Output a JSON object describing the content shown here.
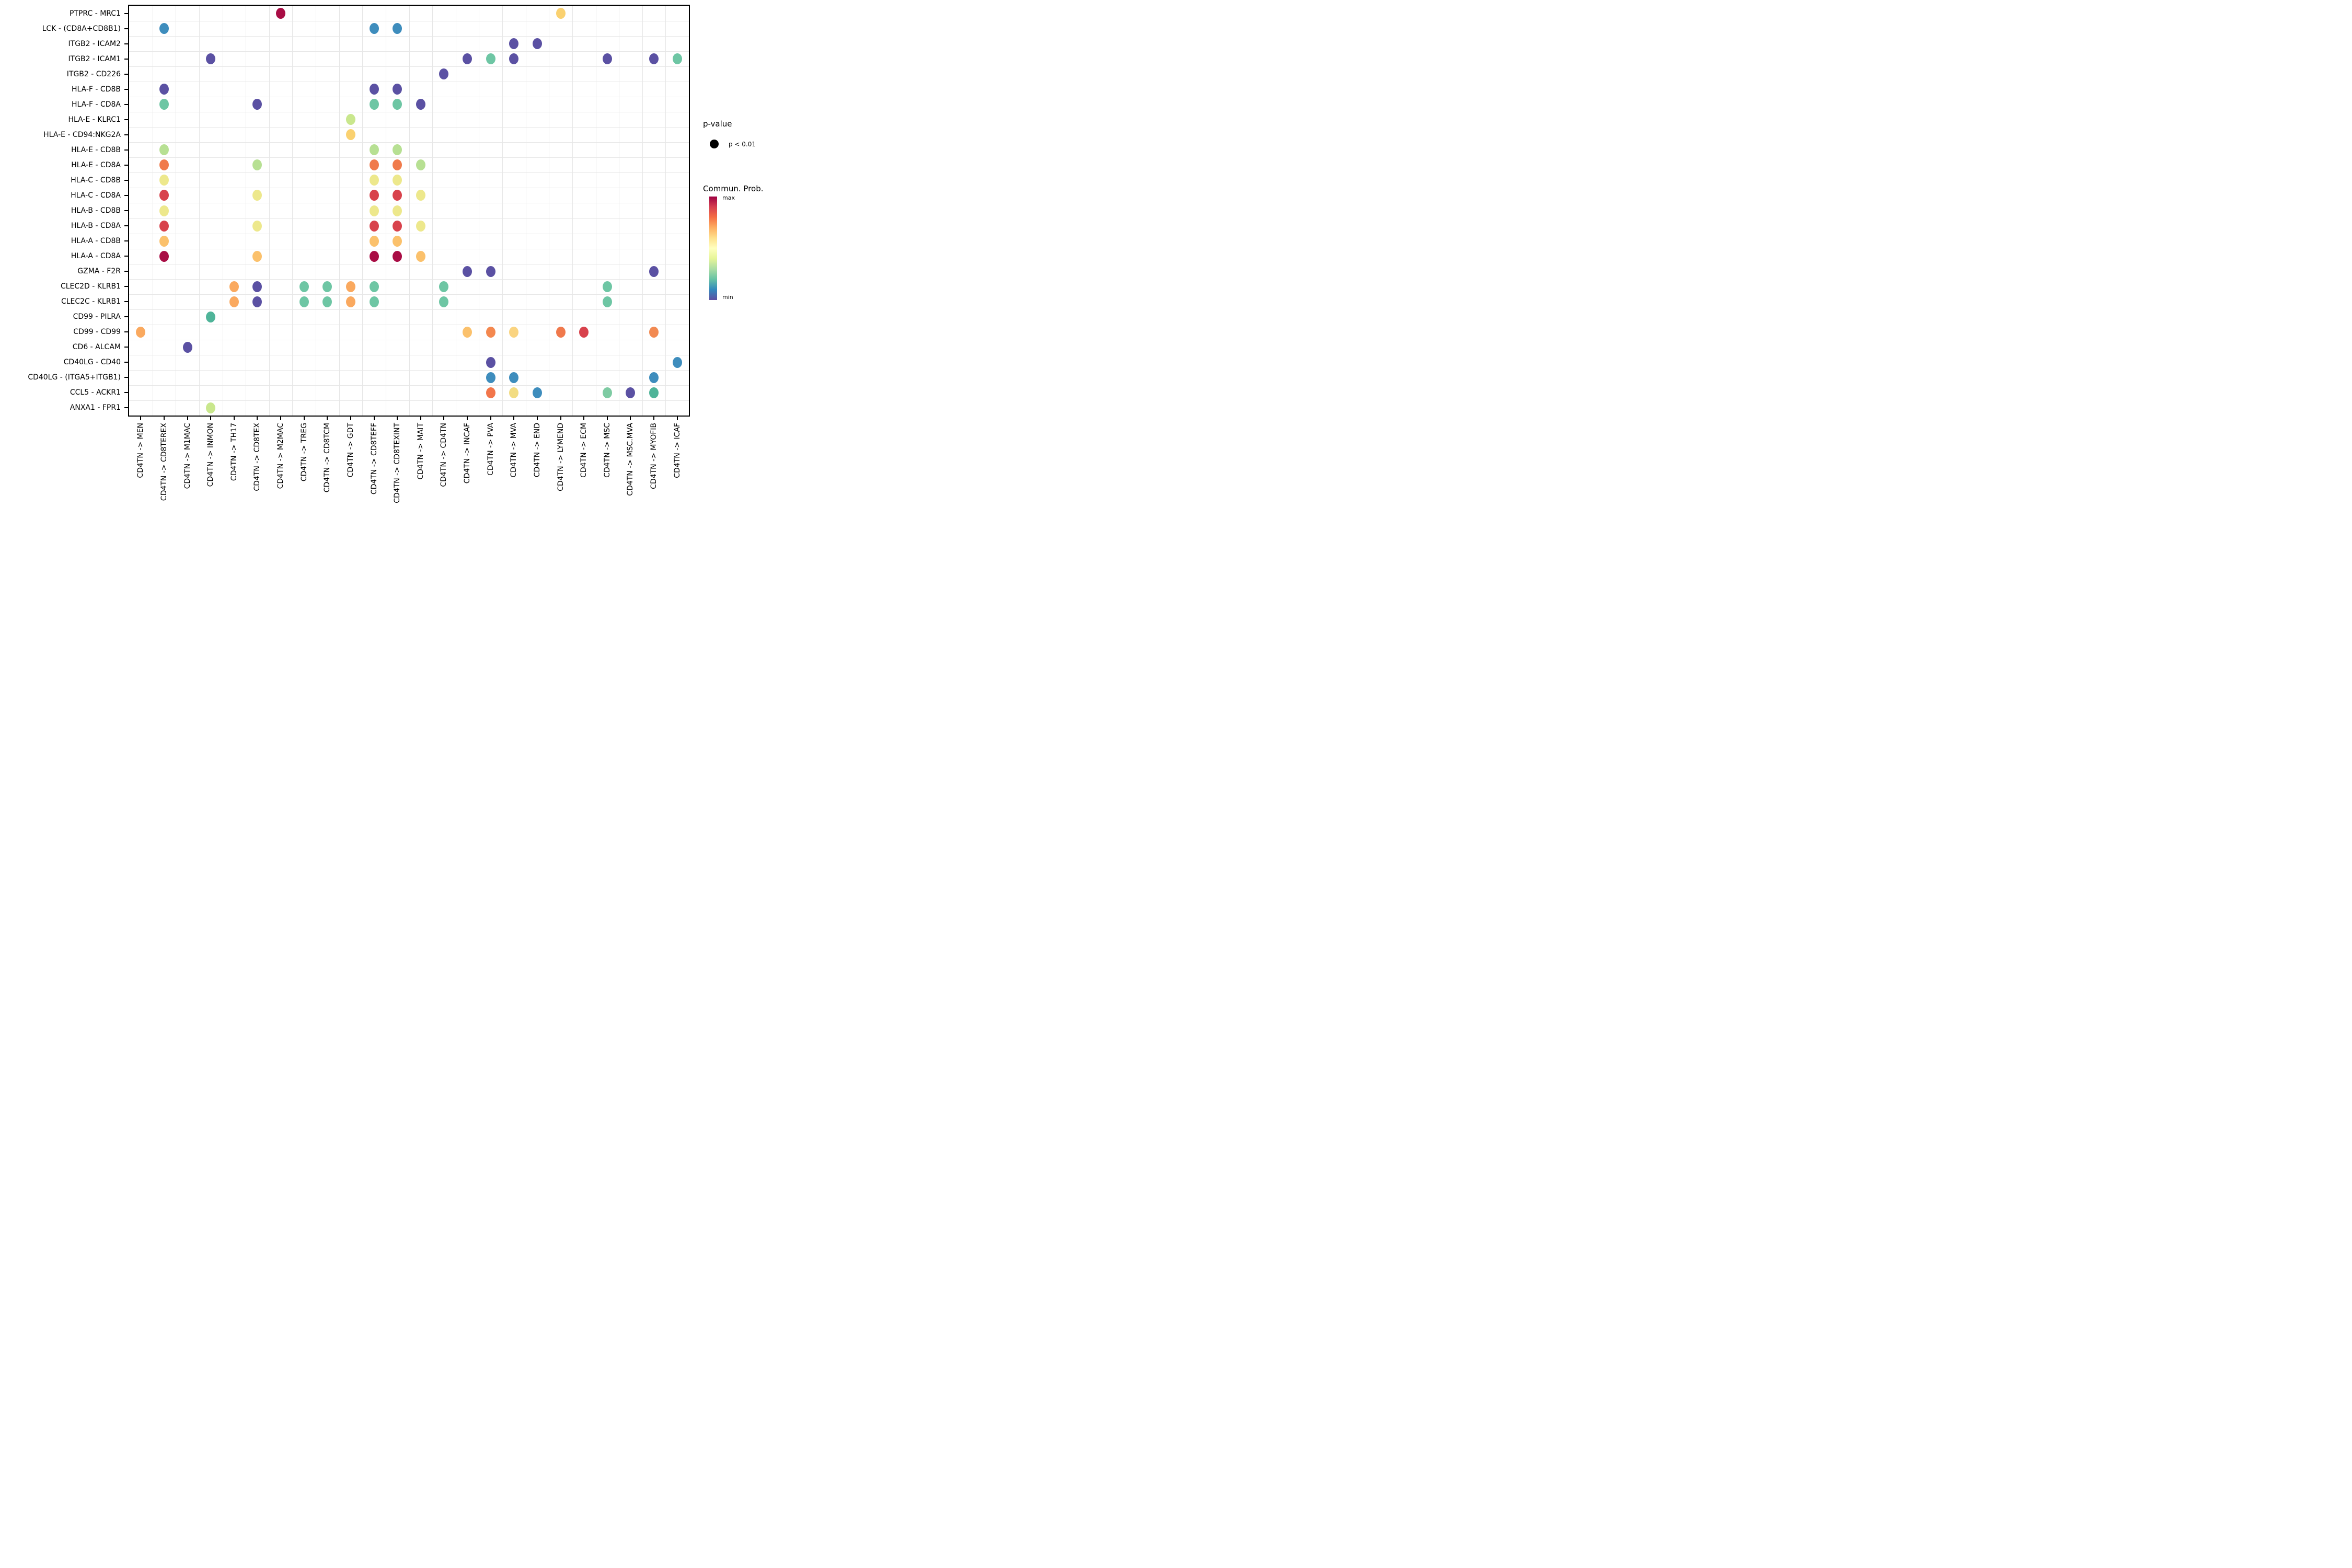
{
  "legend": {
    "pvalue_title": "p-value",
    "pvalue_item": "p < 0.01",
    "pvalue_dot_color": "#000000",
    "prob_title": "Commun. Prob.",
    "max_label": "max",
    "min_label": "min",
    "gradient": [
      "#9E0142",
      "#D53E4F",
      "#F46D43",
      "#FDAE61",
      "#FEE08B",
      "#FFFFBF",
      "#E6F598",
      "#ABDDA4",
      "#66C2A5",
      "#3288BD",
      "#5E4FA2"
    ]
  },
  "chart_data": {
    "type": "scatter",
    "title": "",
    "xlabel": "",
    "ylabel": "",
    "grid": "on",
    "legend_position": "right",
    "size_encoding": "all dots same size, p < 0.01",
    "color_encoding": "Communication probability, Spectral palette reversed (min=#5E4FA2 purple, max=#9E0142 dark red)",
    "x_categories": [
      "CD4TN -> MEN",
      "CD4TN -> CD8TEREX",
      "CD4TN -> M1MAC",
      "CD4TN -> INMON",
      "CD4TN -> TH17",
      "CD4TN -> CD8TEX",
      "CD4TN -> M2MAC",
      "CD4TN -> TREG",
      "CD4TN -> CD8TCM",
      "CD4TN -> GDT",
      "CD4TN -> CD8TEFF",
      "CD4TN -> CD8TEXINT",
      "CD4TN -> MAIT",
      "CD4TN -> CD4TN",
      "CD4TN -> INCAF",
      "CD4TN -> PVA",
      "CD4TN -> MVA",
      "CD4TN -> END",
      "CD4TN -> LYMEND",
      "CD4TN -> ECM",
      "CD4TN -> MSC",
      "CD4TN -> MSC.MVA",
      "CD4TN -> MYOFIB",
      "CD4TN -> ICAF"
    ],
    "y_categories": [
      "PTPRC - MRC1",
      "LCK - (CD8A+CD8B1)",
      "ITGB2 - ICAM2",
      "ITGB2 - ICAM1",
      "ITGB2 - CD226",
      "HLA-F - CD8B",
      "HLA-F - CD8A",
      "HLA-E - KLRC1",
      "HLA-E - CD94:NKG2A",
      "HLA-E - CD8B",
      "HLA-E - CD8A",
      "HLA-C - CD8B",
      "HLA-C - CD8A",
      "HLA-B - CD8B",
      "HLA-B - CD8A",
      "HLA-A - CD8B",
      "HLA-A - CD8A",
      "GZMA - F2R",
      "CLEC2D - KLRB1",
      "CLEC2C - KLRB1",
      "CD99 - PILRA",
      "CD99 - CD99",
      "CD6 - ALCAM",
      "CD40LG - CD40",
      "CD40LG - (ITGA5+ITGB1)",
      "CCL5 - ACKR1",
      "ANXA1 - FPR1"
    ],
    "points": [
      {
        "y": "PTPRC - MRC1",
        "x": "CD4TN -> M2MAC",
        "color": "#A90D45"
      },
      {
        "y": "PTPRC - MRC1",
        "x": "CD4TN -> LYMEND",
        "color": "#FAD170"
      },
      {
        "y": "LCK - (CD8A+CD8B1)",
        "x": "CD4TN -> CD8TEREX",
        "color": "#3E8DBD"
      },
      {
        "y": "LCK - (CD8A+CD8B1)",
        "x": "CD4TN -> CD8TEFF",
        "color": "#3E8DBD"
      },
      {
        "y": "LCK - (CD8A+CD8B1)",
        "x": "CD4TN -> CD8TEXINT",
        "color": "#3E8DBD"
      },
      {
        "y": "ITGB2 - ICAM2",
        "x": "CD4TN -> MVA",
        "color": "#5B51A3"
      },
      {
        "y": "ITGB2 - ICAM2",
        "x": "CD4TN -> END",
        "color": "#5B51A3"
      },
      {
        "y": "ITGB2 - ICAM1",
        "x": "CD4TN -> INMON",
        "color": "#5B51A3"
      },
      {
        "y": "ITGB2 - ICAM1",
        "x": "CD4TN -> INCAF",
        "color": "#5B51A3"
      },
      {
        "y": "ITGB2 - ICAM1",
        "x": "CD4TN -> PVA",
        "color": "#6EC6A4"
      },
      {
        "y": "ITGB2 - ICAM1",
        "x": "CD4TN -> MVA",
        "color": "#5B51A3"
      },
      {
        "y": "ITGB2 - ICAM1",
        "x": "CD4TN -> MSC",
        "color": "#5B51A3"
      },
      {
        "y": "ITGB2 - ICAM1",
        "x": "CD4TN -> MYOFIB",
        "color": "#5B51A3"
      },
      {
        "y": "ITGB2 - ICAM1",
        "x": "CD4TN -> ICAF",
        "color": "#6EC6A4"
      },
      {
        "y": "ITGB2 - CD226",
        "x": "CD4TN -> CD4TN",
        "color": "#5B51A3"
      },
      {
        "y": "HLA-F - CD8B",
        "x": "CD4TN -> CD8TEREX",
        "color": "#5B51A3"
      },
      {
        "y": "HLA-F - CD8B",
        "x": "CD4TN -> CD8TEFF",
        "color": "#5B51A3"
      },
      {
        "y": "HLA-F - CD8B",
        "x": "CD4TN -> CD8TEXINT",
        "color": "#5B51A3"
      },
      {
        "y": "HLA-F - CD8A",
        "x": "CD4TN -> CD8TEREX",
        "color": "#6EC6A4"
      },
      {
        "y": "HLA-F - CD8A",
        "x": "CD4TN -> CD8TEX",
        "color": "#5B51A3"
      },
      {
        "y": "HLA-F - CD8A",
        "x": "CD4TN -> CD8TEFF",
        "color": "#6EC6A4"
      },
      {
        "y": "HLA-F - CD8A",
        "x": "CD4TN -> CD8TEXINT",
        "color": "#6EC6A4"
      },
      {
        "y": "HLA-F - CD8A",
        "x": "CD4TN -> MAIT",
        "color": "#5B51A3"
      },
      {
        "y": "HLA-E - KLRC1",
        "x": "CD4TN -> GDT",
        "color": "#C9E78D"
      },
      {
        "y": "HLA-E - CD94:NKG2A",
        "x": "CD4TN -> GDT",
        "color": "#FAD170"
      },
      {
        "y": "HLA-E - CD8B",
        "x": "CD4TN -> CD8TEREX",
        "color": "#B7E093"
      },
      {
        "y": "HLA-E - CD8B",
        "x": "CD4TN -> CD8TEFF",
        "color": "#B7E093"
      },
      {
        "y": "HLA-E - CD8B",
        "x": "CD4TN -> CD8TEXINT",
        "color": "#B7E093"
      },
      {
        "y": "HLA-E - CD8A",
        "x": "CD4TN -> CD8TEREX",
        "color": "#F07B4C"
      },
      {
        "y": "HLA-E - CD8A",
        "x": "CD4TN -> CD8TEX",
        "color": "#B7E093"
      },
      {
        "y": "HLA-E - CD8A",
        "x": "CD4TN -> CD8TEFF",
        "color": "#F07B4C"
      },
      {
        "y": "HLA-E - CD8A",
        "x": "CD4TN -> CD8TEXINT",
        "color": "#F07B4C"
      },
      {
        "y": "HLA-E - CD8A",
        "x": "CD4TN -> MAIT",
        "color": "#B7E093"
      },
      {
        "y": "HLA-C - CD8B",
        "x": "CD4TN -> CD8TEREX",
        "color": "#EDE88C"
      },
      {
        "y": "HLA-C - CD8B",
        "x": "CD4TN -> CD8TEFF",
        "color": "#EDE88C"
      },
      {
        "y": "HLA-C - CD8B",
        "x": "CD4TN -> CD8TEXINT",
        "color": "#EDE88C"
      },
      {
        "y": "HLA-C - CD8A",
        "x": "CD4TN -> CD8TEREX",
        "color": "#D8424C"
      },
      {
        "y": "HLA-C - CD8A",
        "x": "CD4TN -> CD8TEX",
        "color": "#EDE88C"
      },
      {
        "y": "HLA-C - CD8A",
        "x": "CD4TN -> CD8TEFF",
        "color": "#D8424C"
      },
      {
        "y": "HLA-C - CD8A",
        "x": "CD4TN -> CD8TEXINT",
        "color": "#D8424C"
      },
      {
        "y": "HLA-C - CD8A",
        "x": "CD4TN -> MAIT",
        "color": "#EDE88C"
      },
      {
        "y": "HLA-B - CD8B",
        "x": "CD4TN -> CD8TEREX",
        "color": "#EDE88C"
      },
      {
        "y": "HLA-B - CD8B",
        "x": "CD4TN -> CD8TEFF",
        "color": "#EDE88C"
      },
      {
        "y": "HLA-B - CD8B",
        "x": "CD4TN -> CD8TEXINT",
        "color": "#EDE88C"
      },
      {
        "y": "HLA-B - CD8A",
        "x": "CD4TN -> CD8TEREX",
        "color": "#D8424C"
      },
      {
        "y": "HLA-B - CD8A",
        "x": "CD4TN -> CD8TEX",
        "color": "#EDE88C"
      },
      {
        "y": "HLA-B - CD8A",
        "x": "CD4TN -> CD8TEFF",
        "color": "#D8424C"
      },
      {
        "y": "HLA-B - CD8A",
        "x": "CD4TN -> CD8TEXINT",
        "color": "#D8424C"
      },
      {
        "y": "HLA-B - CD8A",
        "x": "CD4TN -> MAIT",
        "color": "#EDE88C"
      },
      {
        "y": "HLA-A - CD8B",
        "x": "CD4TN -> CD8TEREX",
        "color": "#FBC16C"
      },
      {
        "y": "HLA-A - CD8B",
        "x": "CD4TN -> CD8TEFF",
        "color": "#FBC16C"
      },
      {
        "y": "HLA-A - CD8B",
        "x": "CD4TN -> CD8TEXINT",
        "color": "#FBC16C"
      },
      {
        "y": "HLA-A - CD8A",
        "x": "CD4TN -> CD8TEREX",
        "color": "#A90D45"
      },
      {
        "y": "HLA-A - CD8A",
        "x": "CD4TN -> CD8TEX",
        "color": "#FBC16C"
      },
      {
        "y": "HLA-A - CD8A",
        "x": "CD4TN -> CD8TEFF",
        "color": "#A90D45"
      },
      {
        "y": "HLA-A - CD8A",
        "x": "CD4TN -> CD8TEXINT",
        "color": "#A90D45"
      },
      {
        "y": "HLA-A - CD8A",
        "x": "CD4TN -> MAIT",
        "color": "#FBC16C"
      },
      {
        "y": "GZMA - F2R",
        "x": "CD4TN -> INCAF",
        "color": "#5B51A3"
      },
      {
        "y": "GZMA - F2R",
        "x": "CD4TN -> PVA",
        "color": "#5B51A3"
      },
      {
        "y": "GZMA - F2R",
        "x": "CD4TN -> MYOFIB",
        "color": "#5B51A3"
      },
      {
        "y": "CLEC2D - KLRB1",
        "x": "CD4TN -> TH17",
        "color": "#FAA95F"
      },
      {
        "y": "CLEC2D - KLRB1",
        "x": "CD4TN -> CD8TEX",
        "color": "#5B51A3"
      },
      {
        "y": "CLEC2D - KLRB1",
        "x": "CD4TN -> TREG",
        "color": "#6EC6A4"
      },
      {
        "y": "CLEC2D - KLRB1",
        "x": "CD4TN -> CD8TCM",
        "color": "#6EC6A4"
      },
      {
        "y": "CLEC2D - KLRB1",
        "x": "CD4TN -> GDT",
        "color": "#FAA95F"
      },
      {
        "y": "CLEC2D - KLRB1",
        "x": "CD4TN -> CD8TEFF",
        "color": "#6EC6A4"
      },
      {
        "y": "CLEC2D - KLRB1",
        "x": "CD4TN -> CD4TN",
        "color": "#6EC6A4"
      },
      {
        "y": "CLEC2D - KLRB1",
        "x": "CD4TN -> MSC",
        "color": "#6EC6A4"
      },
      {
        "y": "CLEC2C - KLRB1",
        "x": "CD4TN -> TH17",
        "color": "#FAA95F"
      },
      {
        "y": "CLEC2C - KLRB1",
        "x": "CD4TN -> CD8TEX",
        "color": "#5B51A3"
      },
      {
        "y": "CLEC2C - KLRB1",
        "x": "CD4TN -> TREG",
        "color": "#6EC6A4"
      },
      {
        "y": "CLEC2C - KLRB1",
        "x": "CD4TN -> CD8TCM",
        "color": "#6EC6A4"
      },
      {
        "y": "CLEC2C - KLRB1",
        "x": "CD4TN -> GDT",
        "color": "#FAA95F"
      },
      {
        "y": "CLEC2C - KLRB1",
        "x": "CD4TN -> CD8TEFF",
        "color": "#6EC6A4"
      },
      {
        "y": "CLEC2C - KLRB1",
        "x": "CD4TN -> CD4TN",
        "color": "#6EC6A4"
      },
      {
        "y": "CLEC2C - KLRB1",
        "x": "CD4TN -> MSC",
        "color": "#6EC6A4"
      },
      {
        "y": "CD99 - PILRA",
        "x": "CD4TN -> INMON",
        "color": "#4FB499"
      },
      {
        "y": "CD99 - CD99",
        "x": "CD4TN -> MEN",
        "color": "#FAA95F"
      },
      {
        "y": "CD99 - CD99",
        "x": "CD4TN -> INCAF",
        "color": "#FBC16C"
      },
      {
        "y": "CD99 - CD99",
        "x": "CD4TN -> PVA",
        "color": "#F4884F"
      },
      {
        "y": "CD99 - CD99",
        "x": "CD4TN -> MVA",
        "color": "#FAD480"
      },
      {
        "y": "CD99 - CD99",
        "x": "CD4TN -> LYMEND",
        "color": "#F0794C"
      },
      {
        "y": "CD99 - CD99",
        "x": "CD4TN -> ECM",
        "color": "#D8424C"
      },
      {
        "y": "CD99 - CD99",
        "x": "CD4TN -> MYOFIB",
        "color": "#F28A52"
      },
      {
        "y": "CD6 - ALCAM",
        "x": "CD4TN -> M1MAC",
        "color": "#5B51A3"
      },
      {
        "y": "CD40LG - CD40",
        "x": "CD4TN -> PVA",
        "color": "#5B51A3"
      },
      {
        "y": "CD40LG - CD40",
        "x": "CD4TN -> ICAF",
        "color": "#3E8DBD"
      },
      {
        "y": "CD40LG - (ITGA5+ITGB1)",
        "x": "CD4TN -> PVA",
        "color": "#3E8DBD"
      },
      {
        "y": "CD40LG - (ITGA5+ITGB1)",
        "x": "CD4TN -> MVA",
        "color": "#3E8DBD"
      },
      {
        "y": "CD40LG - (ITGA5+ITGB1)",
        "x": "CD4TN -> MYOFIB",
        "color": "#3E8DBD"
      },
      {
        "y": "CCL5 - ACKR1",
        "x": "CD4TN -> PVA",
        "color": "#F2764B"
      },
      {
        "y": "CCL5 - ACKR1",
        "x": "CD4TN -> MVA",
        "color": "#F2DC82"
      },
      {
        "y": "CCL5 - ACKR1",
        "x": "CD4TN -> END",
        "color": "#3E8DBD"
      },
      {
        "y": "CCL5 - ACKR1",
        "x": "CD4TN -> MSC",
        "color": "#7ECBA3"
      },
      {
        "y": "CCL5 - ACKR1",
        "x": "CD4TN -> MSC.MVA",
        "color": "#5B51A3"
      },
      {
        "y": "CCL5 - ACKR1",
        "x": "CD4TN -> MYOFIB",
        "color": "#4FB499"
      },
      {
        "y": "ANXA1 - FPR1",
        "x": "CD4TN -> INMON",
        "color": "#C9E78D"
      }
    ]
  }
}
